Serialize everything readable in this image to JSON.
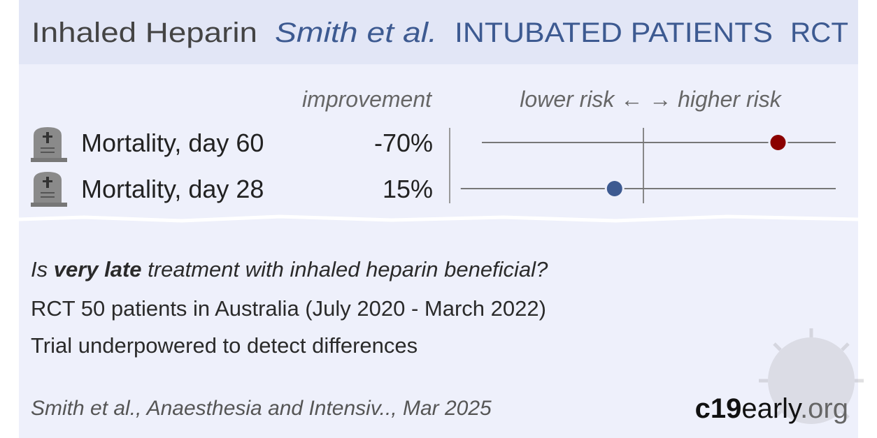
{
  "header": {
    "drug": "Inhaled Heparin",
    "author": "Smith et al.",
    "population": "INTUBATED PATIENTS",
    "design": "RCT"
  },
  "column_label": "improvement",
  "forest": {
    "axis_label": "lower risk ← → higher risk",
    "xlim": [
      100,
      -100
    ],
    "reference": 0
  },
  "outcomes": [
    {
      "name": "Mortality, day 60",
      "improvement": -70,
      "improvement_label": "-70%",
      "color": "#8b0000",
      "ci": [
        84,
        -100
      ]
    },
    {
      "name": "Mortality, day 28",
      "improvement": 15,
      "improvement_label": "15%",
      "color": "#3d5a91",
      "ci": [
        95,
        -100
      ]
    }
  ],
  "question": [
    "Is ",
    "very late",
    " treatment with inhaled heparin beneficial?"
  ],
  "details": [
    "RCT 50 patients in Australia (July 2020 - March 2022)",
    "Trial underpowered to detect differences"
  ],
  "citation": "Smith et al., Anaesthesia and Intensiv.., Mar 2025",
  "logo": [
    "c19",
    "early",
    ".org"
  ]
}
